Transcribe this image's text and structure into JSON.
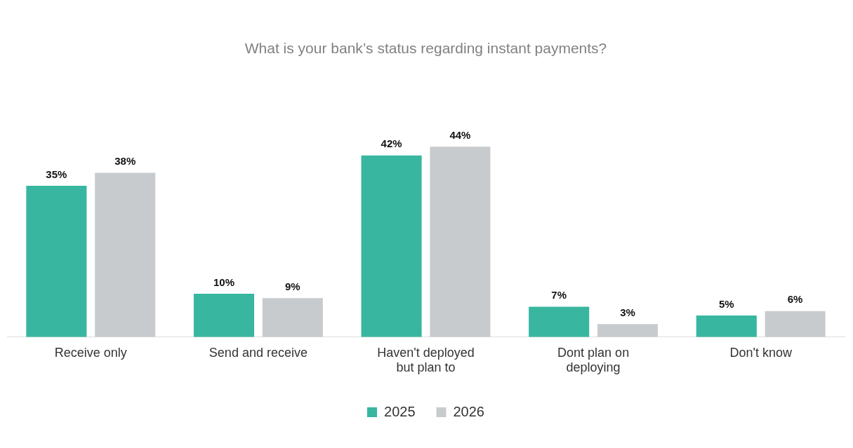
{
  "chart_data": {
    "type": "bar",
    "title": "What is your bank’s status regarding instant payments?",
    "categories": [
      "Receive only",
      "Send and receive",
      "Haven't deployed but plan to",
      "Dont plan on deploying",
      "Don't know"
    ],
    "series": [
      {
        "name": "2025",
        "color": "#38b6a0",
        "values": [
          35,
          10,
          42,
          7,
          5
        ],
        "value_labels": [
          "35%",
          "10%",
          "42%",
          "7%",
          "5%"
        ]
      },
      {
        "name": "2026",
        "color": "#c8cbce",
        "values": [
          38,
          9,
          44,
          3,
          6
        ],
        "value_labels": [
          "38%",
          "9%",
          "44%",
          "3%",
          "6%"
        ]
      }
    ],
    "tick_labels": "x",
    "legend": "bottom",
    "grid": false
  }
}
